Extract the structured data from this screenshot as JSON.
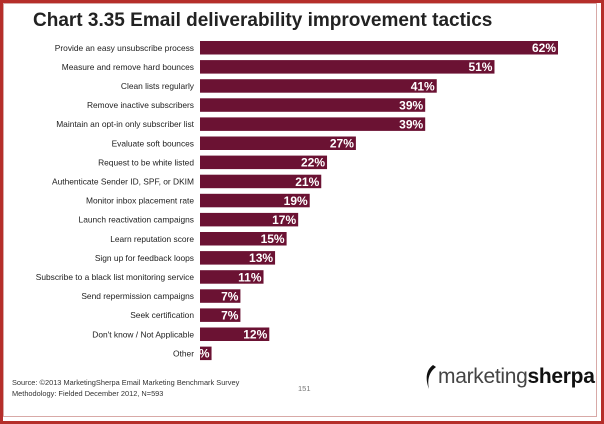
{
  "chart_data": {
    "type": "bar",
    "orientation": "horizontal",
    "title": "Chart 3.35 Email deliverability improvement tactics",
    "categories": [
      "Provide an easy unsubscribe process",
      "Measure and remove hard bounces",
      "Clean lists regularly",
      "Remove inactive subscribers",
      "Maintain an opt-in only subscriber list",
      "Evaluate soft bounces",
      "Request to be white listed",
      "Authenticate Sender ID, SPF, or DKIM",
      "Monitor inbox placement rate",
      "Launch reactivation campaigns",
      "Learn reputation score",
      "Sign up for feedback loops",
      "Subscribe to a black list monitoring service",
      "Send repermission campaigns",
      "Seek certification",
      "Don't know / Not Applicable",
      "Other"
    ],
    "values": [
      62,
      51,
      41,
      39,
      39,
      27,
      22,
      21,
      19,
      17,
      15,
      13,
      11,
      7,
      7,
      12,
      2
    ],
    "value_labels": [
      "62%",
      "51%",
      "41%",
      "39%",
      "39%",
      "27%",
      "22%",
      "21%",
      "19%",
      "17%",
      "15%",
      "13%",
      "11%",
      "7%",
      "7%",
      "12%",
      "2%"
    ],
    "xlim": [
      0,
      62
    ],
    "bar_color": "#6b1233",
    "grid": false,
    "legend": "none"
  },
  "footer": {
    "source": "Source: ©2013 MarketingSherpa Email Marketing Benchmark Survey",
    "methodology": "Methodology: Fielded December 2012, N=593",
    "page_number": "151"
  },
  "logo": {
    "text_part1": "marketing",
    "text_part2": "sherpa",
    "mark_icon": "sherpa-swoosh-icon"
  },
  "colors": {
    "frame": "#b52e2a",
    "bar": "#6b1233"
  }
}
